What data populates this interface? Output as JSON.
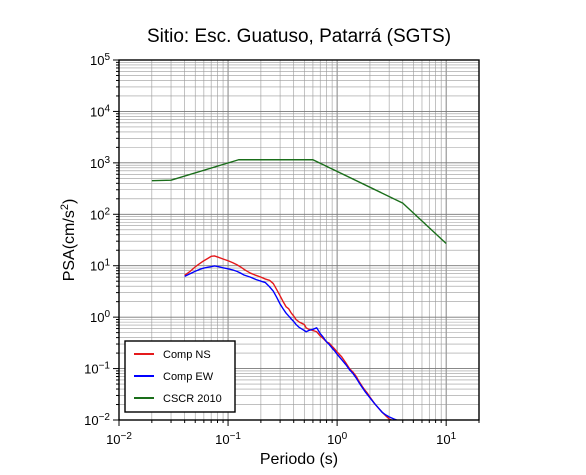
{
  "chart_data": {
    "type": "line",
    "title": "Sitio: Esc. Guatuso, Patarrá (SGTS)",
    "xlabel": "Periodo (s)",
    "ylabel": "PSA(cm/s²)",
    "ylabel_parts": {
      "main": "PSA(cm/s",
      "sup": "2",
      "end": ")"
    },
    "x_scale": "log",
    "y_scale": "log",
    "xlim": [
      0.01,
      20
    ],
    "ylim": [
      0.01,
      100000
    ],
    "x_ticks": [
      {
        "value": 0.01,
        "base": "10",
        "exp": "−2"
      },
      {
        "value": 0.1,
        "base": "10",
        "exp": "−1"
      },
      {
        "value": 1,
        "base": "10",
        "exp": "0"
      },
      {
        "value": 10,
        "base": "10",
        "exp": "1"
      }
    ],
    "y_ticks": [
      {
        "value": 0.01,
        "base": "10",
        "exp": "−2"
      },
      {
        "value": 0.1,
        "base": "10",
        "exp": "−1"
      },
      {
        "value": 1,
        "base": "10",
        "exp": "0"
      },
      {
        "value": 10,
        "base": "10",
        "exp": "1"
      },
      {
        "value": 100,
        "base": "10",
        "exp": "2"
      },
      {
        "value": 1000,
        "base": "10",
        "exp": "3"
      },
      {
        "value": 10000,
        "base": "10",
        "exp": "4"
      },
      {
        "value": 100000,
        "base": "10",
        "exp": "5"
      }
    ],
    "grid": true,
    "legend_position": "bottom-left",
    "series": [
      {
        "name": "Comp NS",
        "color": "#e41a1c",
        "points": [
          [
            0.04,
            6.5
          ],
          [
            0.045,
            7.8
          ],
          [
            0.05,
            9.5
          ],
          [
            0.055,
            11
          ],
          [
            0.06,
            12.5
          ],
          [
            0.065,
            13.8
          ],
          [
            0.07,
            15.2
          ],
          [
            0.075,
            15.5
          ],
          [
            0.08,
            14.8
          ],
          [
            0.09,
            13.5
          ],
          [
            0.1,
            12.5
          ],
          [
            0.11,
            11.5
          ],
          [
            0.12,
            10.5
          ],
          [
            0.13,
            9.5
          ],
          [
            0.14,
            8.5
          ],
          [
            0.16,
            7.2
          ],
          [
            0.18,
            6.5
          ],
          [
            0.2,
            6.0
          ],
          [
            0.22,
            5.5
          ],
          [
            0.24,
            5.2
          ],
          [
            0.26,
            4.5
          ],
          [
            0.28,
            3.4
          ],
          [
            0.3,
            2.6
          ],
          [
            0.32,
            2.0
          ],
          [
            0.34,
            1.6
          ],
          [
            0.36,
            1.45
          ],
          [
            0.38,
            1.2
          ],
          [
            0.4,
            1.05
          ],
          [
            0.42,
            0.9
          ],
          [
            0.45,
            0.8
          ],
          [
            0.48,
            0.75
          ],
          [
            0.5,
            0.72
          ],
          [
            0.52,
            0.62
          ],
          [
            0.55,
            0.58
          ],
          [
            0.6,
            0.55
          ],
          [
            0.65,
            0.52
          ],
          [
            0.7,
            0.43
          ],
          [
            0.75,
            0.38
          ],
          [
            0.8,
            0.33
          ],
          [
            0.85,
            0.31
          ],
          [
            0.9,
            0.27
          ],
          [
            0.95,
            0.24
          ],
          [
            1.0,
            0.21
          ],
          [
            1.1,
            0.17
          ],
          [
            1.2,
            0.13
          ],
          [
            1.3,
            0.1
          ],
          [
            1.4,
            0.085
          ],
          [
            1.5,
            0.07
          ],
          [
            1.6,
            0.055
          ],
          [
            1.7,
            0.045
          ],
          [
            1.8,
            0.038
          ],
          [
            1.9,
            0.033
          ],
          [
            2.0,
            0.028
          ],
          [
            2.2,
            0.021
          ],
          [
            2.4,
            0.017
          ],
          [
            2.6,
            0.014
          ],
          [
            2.8,
            0.012
          ],
          [
            3.0,
            0.0105
          ],
          [
            3.2,
            0.0098
          ]
        ]
      },
      {
        "name": "Comp EW",
        "color": "#0000ff",
        "points": [
          [
            0.04,
            6.2
          ],
          [
            0.045,
            7.0
          ],
          [
            0.05,
            7.8
          ],
          [
            0.055,
            8.5
          ],
          [
            0.06,
            9.0
          ],
          [
            0.065,
            9.3
          ],
          [
            0.07,
            9.6
          ],
          [
            0.075,
            9.9
          ],
          [
            0.08,
            9.7
          ],
          [
            0.09,
            9.1
          ],
          [
            0.1,
            8.7
          ],
          [
            0.11,
            8.3
          ],
          [
            0.12,
            7.8
          ],
          [
            0.13,
            7.2
          ],
          [
            0.14,
            6.6
          ],
          [
            0.16,
            6.0
          ],
          [
            0.18,
            5.4
          ],
          [
            0.2,
            5.0
          ],
          [
            0.22,
            4.7
          ],
          [
            0.24,
            3.9
          ],
          [
            0.26,
            3.2
          ],
          [
            0.28,
            2.4
          ],
          [
            0.3,
            1.8
          ],
          [
            0.32,
            1.45
          ],
          [
            0.34,
            1.2
          ],
          [
            0.36,
            1.05
          ],
          [
            0.38,
            0.92
          ],
          [
            0.4,
            0.82
          ],
          [
            0.42,
            0.72
          ],
          [
            0.45,
            0.63
          ],
          [
            0.48,
            0.58
          ],
          [
            0.5,
            0.55
          ],
          [
            0.52,
            0.52
          ],
          [
            0.55,
            0.55
          ],
          [
            0.6,
            0.58
          ],
          [
            0.65,
            0.62
          ],
          [
            0.7,
            0.48
          ],
          [
            0.75,
            0.4
          ],
          [
            0.8,
            0.33
          ],
          [
            0.85,
            0.29
          ],
          [
            0.9,
            0.25
          ],
          [
            0.95,
            0.22
          ],
          [
            1.0,
            0.19
          ],
          [
            1.1,
            0.15
          ],
          [
            1.2,
            0.12
          ],
          [
            1.3,
            0.095
          ],
          [
            1.4,
            0.08
          ],
          [
            1.5,
            0.065
          ],
          [
            1.6,
            0.052
          ],
          [
            1.7,
            0.043
          ],
          [
            1.8,
            0.036
          ],
          [
            1.9,
            0.031
          ],
          [
            2.0,
            0.027
          ],
          [
            2.2,
            0.021
          ],
          [
            2.4,
            0.017
          ],
          [
            2.6,
            0.014
          ],
          [
            2.8,
            0.0125
          ],
          [
            3.0,
            0.0115
          ],
          [
            3.3,
            0.0105
          ],
          [
            3.6,
            0.0098
          ]
        ]
      },
      {
        "name": "CSCR 2010",
        "color": "#1a6e1a",
        "points": [
          [
            0.02,
            450
          ],
          [
            0.03,
            460
          ],
          [
            0.125,
            1150
          ],
          [
            0.6,
            1150
          ],
          [
            4.0,
            165
          ],
          [
            10.0,
            27
          ]
        ]
      }
    ]
  }
}
